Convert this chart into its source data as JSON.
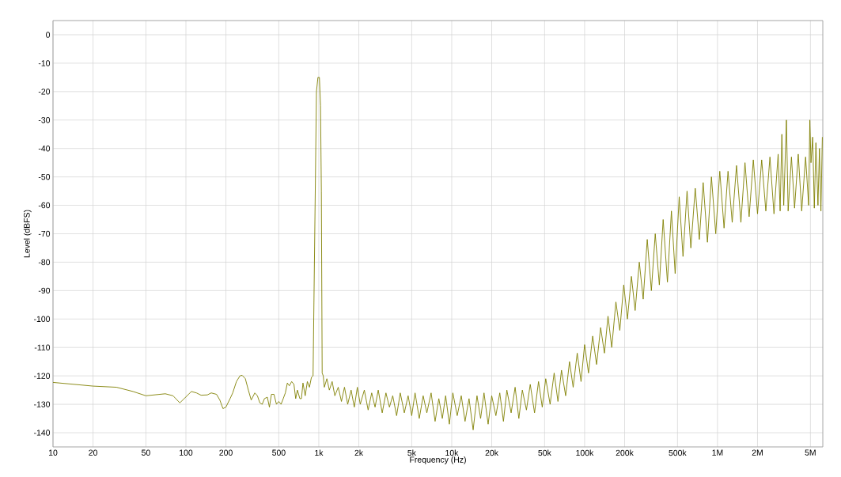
{
  "chart_data": {
    "type": "line",
    "xlabel": "Frequency (Hz)",
    "ylabel": "Level (dBFS)",
    "log": "x",
    "grid": true,
    "xlim": [
      10,
      6200000
    ],
    "ylim": [
      -145,
      5
    ],
    "xticks": [
      10,
      20,
      50,
      100,
      200,
      500,
      {
        "value": 1000,
        "label": "1k"
      },
      {
        "value": 2000,
        "label": "2k"
      },
      {
        "value": 5000,
        "label": "5k"
      },
      {
        "value": 10000,
        "label": "10k"
      },
      {
        "value": 20000,
        "label": "20k"
      },
      {
        "value": 50000,
        "label": "50k"
      },
      {
        "value": 100000,
        "label": "100k"
      },
      {
        "value": 200000,
        "label": "200k"
      },
      {
        "value": 500000,
        "label": "500k"
      },
      {
        "value": 1000000,
        "label": "1M"
      },
      {
        "value": 2000000,
        "label": "2M"
      },
      {
        "value": 5000000,
        "label": "5M"
      }
    ],
    "yticks": [
      0,
      -10,
      -20,
      -30,
      -40,
      -50,
      -60,
      -70,
      -80,
      -90,
      -100,
      -110,
      -120,
      -130,
      -140
    ],
    "series": [
      {
        "color": "#808000",
        "x": [
          10,
          20,
          30,
          40,
          50,
          70,
          80,
          90,
          110,
          120,
          130,
          145,
          155,
          170,
          180,
          190,
          200,
          215,
          225,
          240,
          255,
          265,
          280,
          295,
          310,
          330,
          345,
          360,
          375,
          390,
          410,
          425,
          440,
          460,
          480,
          500,
          520,
          540,
          560,
          580,
          600,
          625,
          650,
          670,
          690,
          720,
          740,
          760,
          790,
          820,
          850,
          880,
          905,
          960,
          985,
          1010,
          1030,
          1045,
          1060,
          1080,
          1100,
          1150,
          1200,
          1260,
          1320,
          1400,
          1480,
          1560,
          1650,
          1750,
          1850,
          1950,
          2050,
          2200,
          2350,
          2500,
          2650,
          2800,
          3000,
          3200,
          3400,
          3600,
          3850,
          4100,
          4400,
          4700,
          5000,
          5300,
          5700,
          6100,
          6500,
          7000,
          7500,
          8000,
          8500,
          9000,
          9600,
          10200,
          11000,
          11800,
          12600,
          13500,
          14500,
          15500,
          16500,
          17500,
          18800,
          20000,
          21500,
          23000,
          24500,
          26000,
          28000,
          30000,
          32000,
          34000,
          36500,
          39000,
          42000,
          45000,
          48000,
          51000,
          55000,
          59000,
          63000,
          67000,
          72000,
          77000,
          82000,
          88000,
          94000,
          100000,
          107000,
          115000,
          123000,
          132000,
          141000,
          150000,
          160000,
          172000,
          184000,
          197000,
          210000,
          225000,
          240000,
          258000,
          276000,
          296000,
          318000,
          340000,
          365000,
          390000,
          420000,
          450000,
          480000,
          515000,
          550000,
          590000,
          630000,
          680000,
          730000,
          780000,
          840000,
          900000,
          970000,
          1040000,
          1120000,
          1200000,
          1290000,
          1390000,
          1500000,
          1610000,
          1730000,
          1860000,
          2000000,
          2150000,
          2310000,
          2480000,
          2660000,
          2860000,
          2960000,
          3050000,
          3150000,
          3300000,
          3400000,
          3600000,
          3800000,
          4050000,
          4300000,
          4600000,
          4850000,
          4950000,
          5050000,
          5200000,
          5350000,
          5500000,
          5700000,
          5850000,
          6000000,
          6150000
        ],
        "values": [
          -122.3,
          -123.6,
          -124,
          -125.5,
          -127,
          -126.3,
          -127,
          -129.5,
          -125.5,
          -126,
          -126.8,
          -126.7,
          -126,
          -126.5,
          -128.5,
          -131.5,
          -131,
          -128,
          -126,
          -122,
          -120,
          -119.8,
          -121,
          -125,
          -128.5,
          -126,
          -127,
          -129.5,
          -130,
          -128,
          -127.5,
          -131,
          -126.5,
          -126.5,
          -130,
          -129,
          -130,
          -128,
          -126,
          -122.5,
          -123.5,
          -122,
          -123,
          -128,
          -125,
          -128,
          -128,
          -122.5,
          -127,
          -122,
          -124,
          -120.5,
          -120,
          -20,
          -15,
          -15,
          -25,
          -55,
          -119,
          -120,
          -124,
          -121,
          -125,
          -122,
          -127,
          -124,
          -129,
          -124,
          -130,
          -125,
          -131,
          -124,
          -130,
          -125,
          -132,
          -126,
          -131,
          -125,
          -133,
          -126,
          -131,
          -127,
          -134,
          -126,
          -133,
          -127,
          -134,
          -126,
          -135,
          -127,
          -133,
          -126,
          -136,
          -128,
          -135,
          -127,
          -137,
          -126,
          -134,
          -127,
          -136,
          -128,
          -139,
          -127,
          -135,
          -126,
          -137,
          -127,
          -134,
          -126,
          -136,
          -125,
          -133,
          -124,
          -135,
          -125,
          -132,
          -123,
          -133,
          -122,
          -131,
          -121,
          -130,
          -119,
          -129,
          -118,
          -127,
          -115,
          -124,
          -112,
          -122,
          -109,
          -119,
          -106,
          -116,
          -103,
          -112,
          -99,
          -110,
          -94,
          -104,
          -88,
          -100,
          -85,
          -97,
          -80,
          -93,
          -72,
          -90,
          -70,
          -88,
          -65,
          -87,
          -62,
          -84,
          -57,
          -78,
          -55,
          -75,
          -54,
          -72,
          -52,
          -73,
          -50,
          -70,
          -48,
          -68,
          -48,
          -66,
          -46,
          -66,
          -45,
          -64,
          -44,
          -63,
          -44,
          -62,
          -43,
          -63,
          -42,
          -62,
          -35,
          -60,
          -30,
          -62,
          -43,
          -61,
          -42,
          -62,
          -43,
          -60,
          -30,
          -45,
          -36,
          -61,
          -38,
          -60,
          -40,
          -62,
          -36
        ]
      }
    ]
  }
}
